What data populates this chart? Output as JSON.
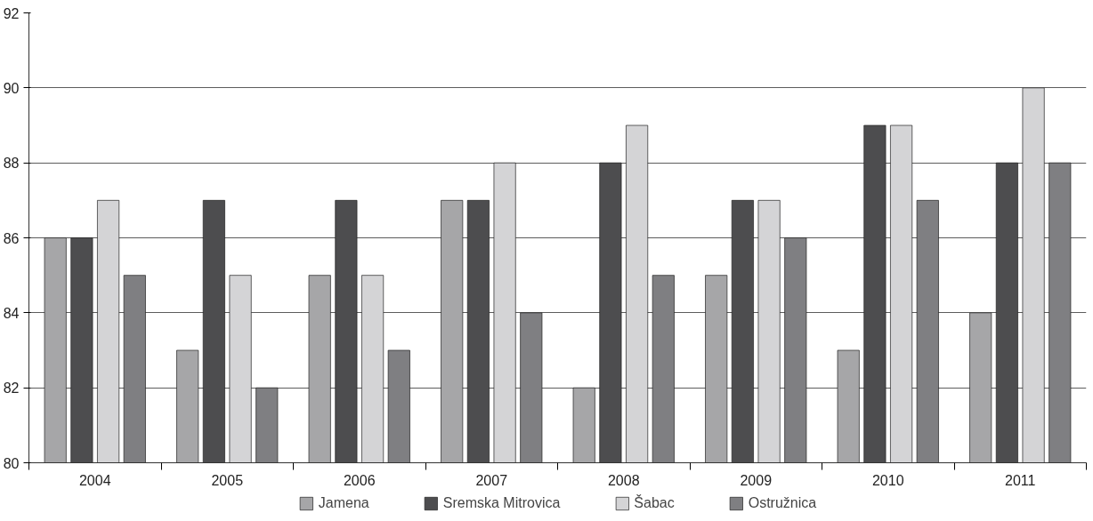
{
  "chart_data": {
    "type": "bar",
    "categories": [
      "2004",
      "2005",
      "2006",
      "2007",
      "2008",
      "2009",
      "2010",
      "2011"
    ],
    "series": [
      {
        "name": "Jamena",
        "color": "#a6a6a8",
        "values": [
          86,
          83,
          85,
          87,
          82,
          85,
          83,
          84
        ]
      },
      {
        "name": "Sremska Mitrovica",
        "color": "#4d4d4f",
        "values": [
          86,
          87,
          87,
          87,
          88,
          87,
          89,
          88
        ]
      },
      {
        "name": "Šabac",
        "color": "#d4d4d6",
        "values": [
          87,
          85,
          85,
          88,
          89,
          87,
          89,
          90
        ]
      },
      {
        "name": "Ostružnica",
        "color": "#7f7f82",
        "values": [
          85,
          82,
          83,
          84,
          85,
          86,
          87,
          88
        ]
      }
    ],
    "ylim": [
      80,
      92
    ],
    "yticks": [
      80,
      82,
      84,
      86,
      88,
      90,
      92
    ],
    "grid": "y",
    "legend": "bottom"
  }
}
